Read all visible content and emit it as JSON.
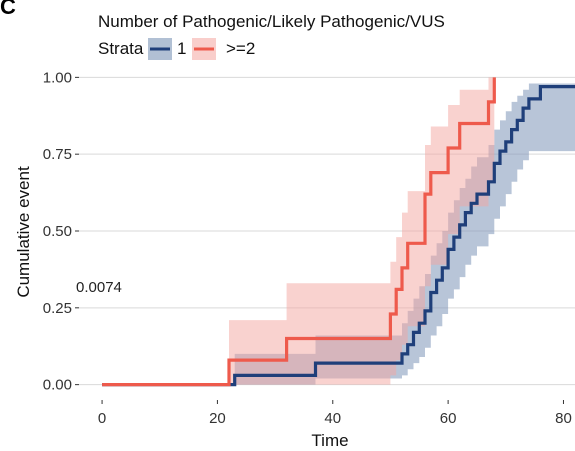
{
  "panel_label": "C",
  "colors": {
    "stratum_1": "#1f3f7a",
    "stratum_1_band": "#7d96b8",
    "stratum_2": "#ee5a4c",
    "stratum_2_band": "#f4a6a0",
    "grid": "#d9d9d9"
  },
  "chart_data": {
    "type": "line",
    "subtype": "step",
    "title": "",
    "xlabel": "Time",
    "ylabel": "Cumulative event",
    "xlim": [
      -4,
      82
    ],
    "ylim": [
      -0.05,
      1.05
    ],
    "x_ticks": [
      0,
      20,
      40,
      60,
      80
    ],
    "y_ticks": [
      0.0,
      0.25,
      0.5,
      0.75,
      1.0
    ],
    "x_tick_labels": [
      "0",
      "20",
      "40",
      "60",
      "80"
    ],
    "y_tick_labels": [
      "0.00",
      "0.25",
      "0.50",
      "0.75",
      "1.00"
    ],
    "grid": "horizontal",
    "legend": {
      "placement": "top-left",
      "title": "Number of Pathogenic/Likely Pathogenic/VUS",
      "strata_label": "Strata",
      "entries": [
        "1",
        ">=2"
      ]
    },
    "annotation": "0.0074",
    "series": [
      {
        "name": "1",
        "color": "#1f3f7a",
        "band_color": "#7d96b8",
        "x": [
          0,
          23,
          24,
          37,
          52,
          53,
          54,
          55,
          56,
          57,
          58,
          59,
          60,
          61,
          62,
          63,
          64,
          65,
          67,
          68,
          69,
          70,
          71,
          72,
          73,
          74,
          76,
          82
        ],
        "y": [
          0,
          0.03,
          0.03,
          0.07,
          0.1,
          0.13,
          0.17,
          0.2,
          0.24,
          0.3,
          0.34,
          0.38,
          0.44,
          0.48,
          0.52,
          0.56,
          0.59,
          0.62,
          0.66,
          0.72,
          0.76,
          0.79,
          0.83,
          0.86,
          0.9,
          0.93,
          0.97,
          0.97
        ],
        "upper": [
          0,
          0.1,
          0.1,
          0.16,
          0.2,
          0.24,
          0.28,
          0.32,
          0.36,
          0.42,
          0.46,
          0.5,
          0.56,
          0.6,
          0.64,
          0.67,
          0.71,
          0.74,
          0.78,
          0.83,
          0.86,
          0.89,
          0.92,
          0.94,
          0.96,
          0.98,
          0.98,
          0.98
        ],
        "lower": [
          0,
          0,
          0,
          0.02,
          0.03,
          0.05,
          0.07,
          0.09,
          0.12,
          0.16,
          0.19,
          0.23,
          0.28,
          0.31,
          0.35,
          0.39,
          0.42,
          0.45,
          0.49,
          0.54,
          0.58,
          0.62,
          0.66,
          0.7,
          0.73,
          0.76,
          0.76,
          0.76
        ]
      },
      {
        "name": ">=2",
        "color": "#ee5a4c",
        "band_color": "#f4a6a0",
        "x": [
          0,
          22,
          32,
          50,
          51,
          52,
          53,
          54,
          56,
          57,
          59,
          60,
          62,
          65,
          67,
          68
        ],
        "y": [
          0,
          0.08,
          0.15,
          0.23,
          0.31,
          0.38,
          0.46,
          0.46,
          0.62,
          0.69,
          0.69,
          0.77,
          0.85,
          0.85,
          0.92,
          1.0
        ],
        "upper": [
          0,
          0.21,
          0.33,
          0.4,
          0.48,
          0.56,
          0.63,
          0.63,
          0.78,
          0.84,
          0.84,
          0.91,
          0.96,
          0.96,
          1.0,
          1.0
        ],
        "lower": [
          0,
          0,
          0,
          0.03,
          0.08,
          0.13,
          0.19,
          0.19,
          0.32,
          0.39,
          0.39,
          0.49,
          0.58,
          0.58,
          0.66,
          0.75
        ]
      }
    ]
  }
}
